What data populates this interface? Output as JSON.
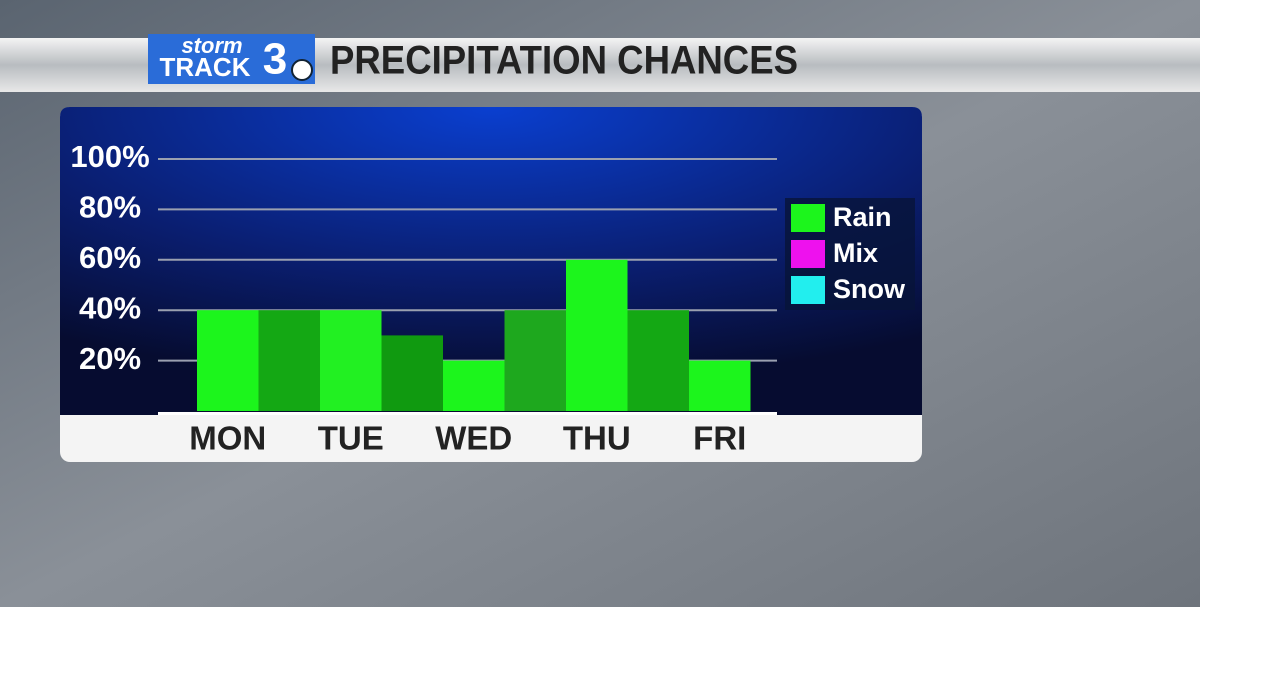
{
  "logo": {
    "top": "storm",
    "bottom": "TRACK",
    "number": "3"
  },
  "chart_data": {
    "type": "bar",
    "title": "PRECIPITATION CHANCES",
    "categories": [
      "MON",
      null,
      "TUE",
      null,
      "WED",
      null,
      "THU",
      null,
      "FRI"
    ],
    "series": [
      {
        "name": "Rain",
        "color": "#1cf51c",
        "colors": [
          "#1cf51c",
          "#14a814",
          "#22f022",
          "#109a10",
          "#1cf51c",
          "#1ea81e",
          "#1cf51c",
          "#14a814",
          "#1cf51c"
        ],
        "values": [
          40,
          40,
          40,
          30,
          20,
          40,
          60,
          40,
          20
        ]
      },
      {
        "name": "Mix",
        "color": "#ee11ee",
        "values": [
          null,
          null,
          null,
          null,
          null,
          null,
          null,
          null,
          null
        ]
      },
      {
        "name": "Snow",
        "color": "#22eeee",
        "values": [
          null,
          null,
          null,
          null,
          null,
          null,
          null,
          null,
          null
        ]
      }
    ],
    "ylim": [
      0,
      100
    ],
    "yticks": [
      {
        "value": 20,
        "label": "20%"
      },
      {
        "value": 40,
        "label": "40%"
      },
      {
        "value": 60,
        "label": "60%"
      },
      {
        "value": 80,
        "label": "80%"
      },
      {
        "value": 100,
        "label": "100%"
      }
    ],
    "grid": true
  }
}
